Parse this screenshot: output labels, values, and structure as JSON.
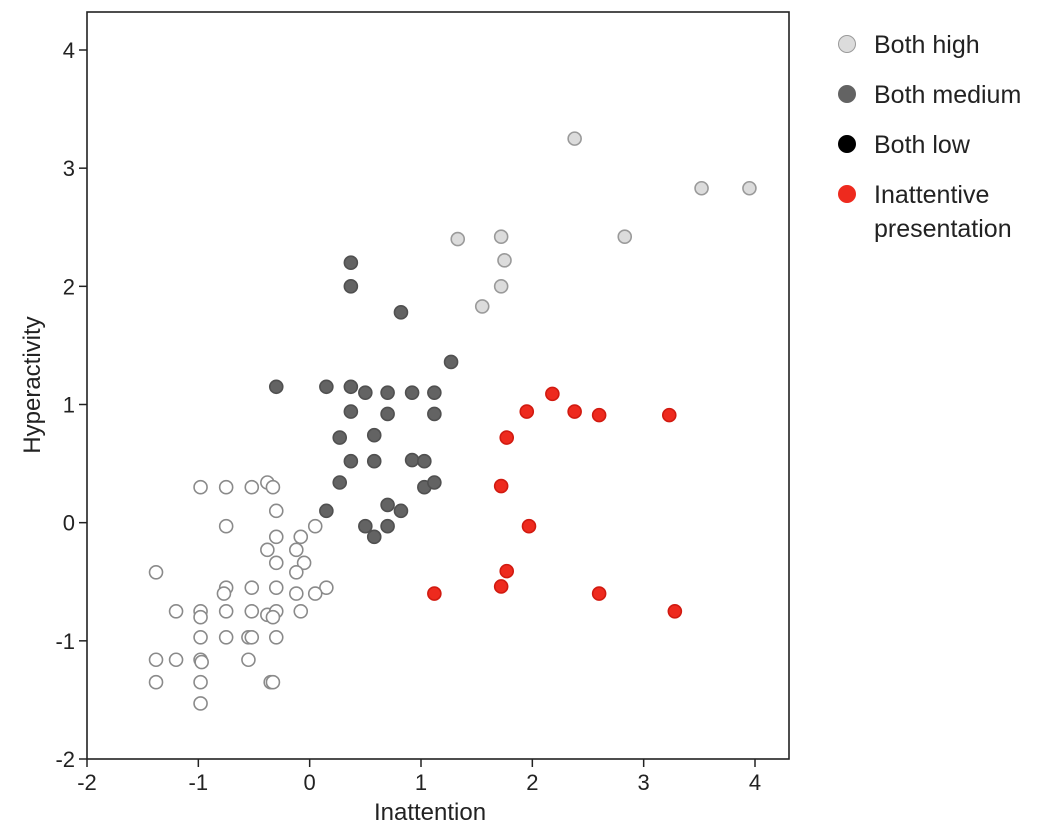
{
  "chart_data": {
    "type": "scatter",
    "title": "",
    "xlabel": "Inattention",
    "ylabel": "Hyperactivity",
    "xlim": [
      -2,
      4.3
    ],
    "ylim": [
      -2,
      4.3
    ],
    "xticks": [
      -2,
      -1,
      0,
      1,
      2,
      3,
      4
    ],
    "yticks": [
      -2,
      -1,
      0,
      1,
      2,
      3,
      4
    ],
    "grid": false,
    "legend_position": "right",
    "series": [
      {
        "name": "Both high",
        "fill": "#dcdcdc",
        "stroke": "#9a9a9a",
        "points": [
          [
            2.38,
            3.25
          ],
          [
            3.52,
            2.83
          ],
          [
            3.95,
            2.83
          ],
          [
            1.33,
            2.4
          ],
          [
            1.72,
            2.42
          ],
          [
            2.83,
            2.42
          ],
          [
            1.75,
            2.22
          ],
          [
            1.72,
            2.0
          ],
          [
            1.55,
            1.83
          ]
        ]
      },
      {
        "name": "Both medium",
        "fill": "#636363",
        "stroke": "#505050",
        "points": [
          [
            0.37,
            2.2
          ],
          [
            0.37,
            2.0
          ],
          [
            0.82,
            1.78
          ],
          [
            1.27,
            1.36
          ],
          [
            -0.3,
            1.15
          ],
          [
            0.15,
            1.15
          ],
          [
            0.37,
            1.15
          ],
          [
            0.5,
            1.1
          ],
          [
            0.7,
            1.1
          ],
          [
            0.92,
            1.1
          ],
          [
            1.12,
            1.1
          ],
          [
            0.37,
            0.94
          ],
          [
            0.7,
            0.92
          ],
          [
            1.12,
            0.92
          ],
          [
            0.27,
            0.72
          ],
          [
            0.58,
            0.74
          ],
          [
            0.37,
            0.52
          ],
          [
            0.58,
            0.52
          ],
          [
            0.92,
            0.53
          ],
          [
            1.03,
            0.52
          ],
          [
            0.27,
            0.34
          ],
          [
            1.03,
            0.3
          ],
          [
            1.12,
            0.34
          ],
          [
            0.7,
            0.15
          ],
          [
            0.82,
            0.1
          ],
          [
            0.15,
            0.1
          ],
          [
            0.5,
            -0.03
          ],
          [
            0.7,
            -0.03
          ],
          [
            0.58,
            -0.12
          ]
        ]
      },
      {
        "name": "Both low",
        "fill": "#ffffff",
        "stroke": "#8a8a8a",
        "points": [
          [
            -0.98,
            0.3
          ],
          [
            -0.75,
            0.3
          ],
          [
            -0.52,
            0.3
          ],
          [
            -0.38,
            0.34
          ],
          [
            -0.33,
            0.3
          ],
          [
            -0.3,
            0.1
          ],
          [
            -0.75,
            -0.03
          ],
          [
            -0.3,
            -0.12
          ],
          [
            -0.08,
            -0.12
          ],
          [
            0.05,
            -0.03
          ],
          [
            -0.38,
            -0.23
          ],
          [
            -0.12,
            -0.23
          ],
          [
            -0.3,
            -0.34
          ],
          [
            -0.05,
            -0.34
          ],
          [
            -1.38,
            -0.42
          ],
          [
            -0.12,
            -0.42
          ],
          [
            -0.52,
            -0.55
          ],
          [
            -0.3,
            -0.55
          ],
          [
            0.15,
            -0.55
          ],
          [
            -0.75,
            -0.55
          ],
          [
            -0.77,
            -0.6
          ],
          [
            -0.12,
            -0.6
          ],
          [
            0.05,
            -0.6
          ],
          [
            -1.2,
            -0.75
          ],
          [
            -0.98,
            -0.75
          ],
          [
            -0.75,
            -0.75
          ],
          [
            -0.52,
            -0.75
          ],
          [
            -0.38,
            -0.78
          ],
          [
            -0.3,
            -0.75
          ],
          [
            -0.08,
            -0.75
          ],
          [
            -0.98,
            -0.8
          ],
          [
            -0.33,
            -0.8
          ],
          [
            -0.98,
            -0.97
          ],
          [
            -0.75,
            -0.97
          ],
          [
            -0.55,
            -0.97
          ],
          [
            -0.52,
            -0.97
          ],
          [
            -0.3,
            -0.97
          ],
          [
            -1.38,
            -1.16
          ],
          [
            -1.2,
            -1.16
          ],
          [
            -0.98,
            -1.16
          ],
          [
            -0.97,
            -1.18
          ],
          [
            -0.55,
            -1.16
          ],
          [
            -1.38,
            -1.35
          ],
          [
            -0.98,
            -1.35
          ],
          [
            -0.35,
            -1.35
          ],
          [
            -0.33,
            -1.35
          ],
          [
            -0.98,
            -1.53
          ]
        ]
      },
      {
        "name": "Inattentive presentation",
        "fill": "#ee2a1e",
        "stroke": "#d11a10",
        "points": [
          [
            2.18,
            1.09
          ],
          [
            1.95,
            0.94
          ],
          [
            2.38,
            0.94
          ],
          [
            2.6,
            0.91
          ],
          [
            3.23,
            0.91
          ],
          [
            1.77,
            0.72
          ],
          [
            1.72,
            0.31
          ],
          [
            1.97,
            -0.03
          ],
          [
            1.77,
            -0.41
          ],
          [
            1.72,
            -0.54
          ],
          [
            1.12,
            -0.6
          ],
          [
            2.6,
            -0.6
          ],
          [
            3.28,
            -0.75
          ]
        ]
      }
    ]
  },
  "legend": {
    "items": [
      {
        "label": "Both high",
        "fill": "#dcdcdc",
        "stroke": "#9a9a9a"
      },
      {
        "label": "Both medium",
        "fill": "#636363",
        "stroke": "#636363"
      },
      {
        "label": "Both low",
        "fill": "#000000",
        "stroke": "#000000"
      },
      {
        "label": "Inattentive presentation",
        "fill": "#ee2a1e",
        "stroke": "#ee2a1e"
      }
    ]
  }
}
